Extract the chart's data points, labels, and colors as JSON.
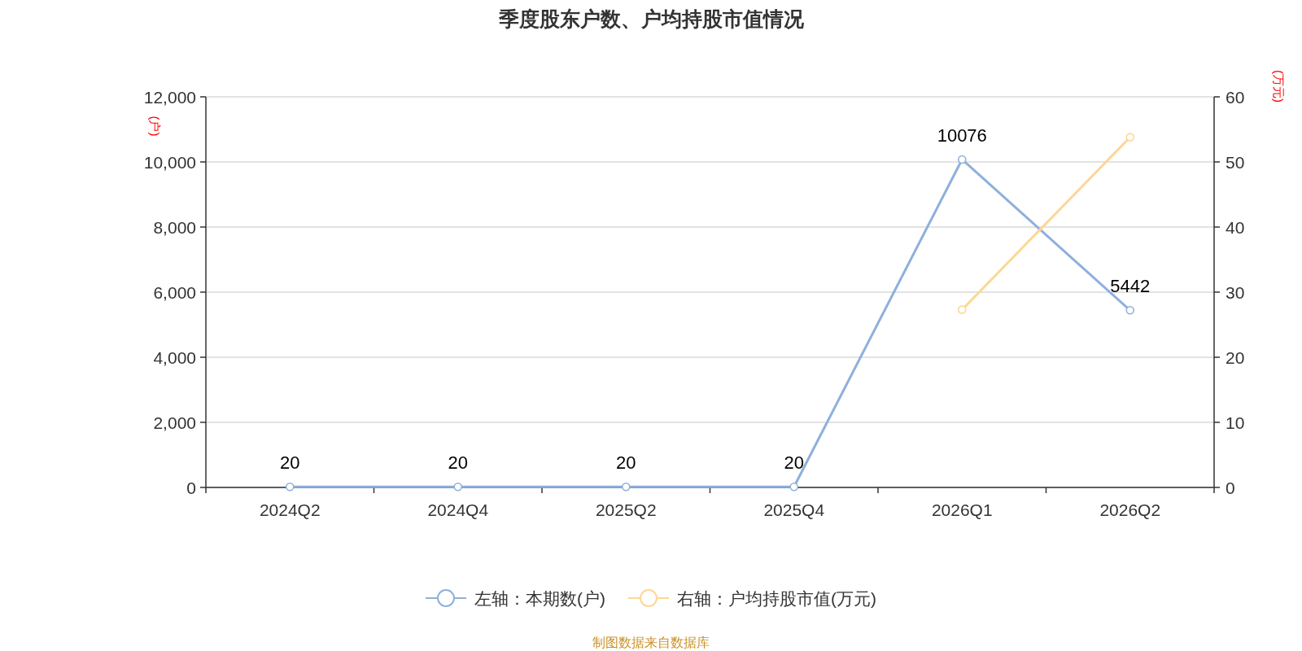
{
  "chart_data": {
    "type": "line",
    "title": "季度股东户数、户均持股市值情况",
    "ylabel": "(户)",
    "y2label": "(万元)",
    "categories": [
      "2024Q2",
      "2024Q4",
      "2025Q2",
      "2025Q4",
      "2026Q1",
      "2026Q2"
    ],
    "series": [
      {
        "name": "左轴：本期数(户)",
        "color": "#8eb0dc",
        "values": [
          20,
          20,
          20,
          20,
          10076,
          5442
        ],
        "value_labels": [
          "20",
          "20",
          "20",
          "20",
          "10076",
          "5442"
        ]
      },
      {
        "name": "右轴：户均持股市值(万元)",
        "color": "#fdd797",
        "axis": "y2",
        "values": [
          null,
          null,
          null,
          null,
          27.3,
          53.8
        ]
      }
    ],
    "ylim": [
      0,
      12000
    ],
    "yticks": [
      0,
      {
        "value": 2000,
        "label": "2,000"
      },
      {
        "value": 4000,
        "label": "4,000"
      },
      {
        "value": 6000,
        "label": "6,000"
      },
      {
        "value": 8000,
        "label": "8,000"
      },
      {
        "value": 10000,
        "label": "10,000"
      },
      {
        "value": 12000,
        "label": "12,000"
      }
    ],
    "y2lim": [
      0,
      60
    ],
    "y2ticks": [
      0,
      10,
      20,
      30,
      40,
      50,
      60
    ],
    "grid": "y",
    "legend": "bottom",
    "marker": "circle",
    "line_style": "solid",
    "annotations": [
      "制图数据来自数据库"
    ]
  }
}
